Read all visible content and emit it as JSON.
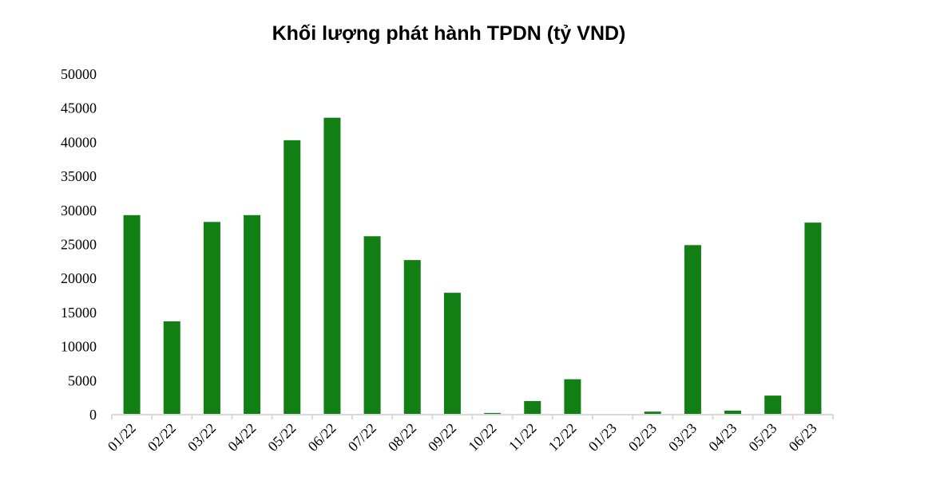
{
  "chart_data": {
    "type": "bar",
    "title": "Khối lượng phát hành TPDN (tỷ VND)",
    "xlabel": "",
    "ylabel": "",
    "categories": [
      "01/22",
      "02/22",
      "03/22",
      "04/22",
      "05/22",
      "06/22",
      "07/22",
      "08/22",
      "09/22",
      "10/22",
      "11/22",
      "12/22",
      "01/23",
      "02/23",
      "03/23",
      "04/23",
      "05/23",
      "06/23"
    ],
    "values": [
      29300,
      13700,
      28300,
      29300,
      40300,
      43600,
      26200,
      22700,
      17900,
      250,
      2000,
      5200,
      50,
      450,
      24900,
      600,
      2800,
      28200
    ],
    "ylim": [
      0,
      50000
    ],
    "yticks": [
      0,
      5000,
      10000,
      15000,
      20000,
      25000,
      30000,
      35000,
      40000,
      45000,
      50000
    ],
    "grid": false,
    "legend": "none",
    "bar_color": "#117f14"
  }
}
